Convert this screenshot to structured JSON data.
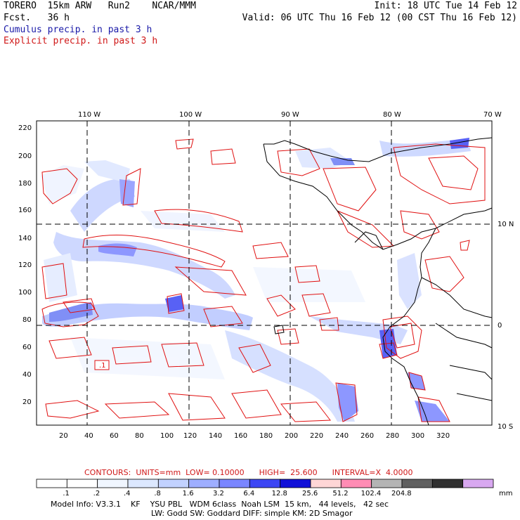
{
  "header": {
    "title": "TORERO  15km ARW   Run2    NCAR/MMM",
    "fcst": "Fcst.   36 h",
    "init": "Init: 18 UTC Tue 14 Feb 12",
    "valid": "Valid: 06 UTC Thu 16 Feb 12 (00 CST Thu 16 Feb 12)",
    "cumulus": "Cumulus precip. in past 3 h",
    "explicit": "Explicit precip. in past 3 h"
  },
  "map": {
    "lon_labels": [
      "110 W",
      "100 W",
      "90 W",
      "80 W",
      "70 W"
    ],
    "lat_labels": [
      "10 N",
      "0",
      "10 S"
    ],
    "y_ticks": [
      "220",
      "200",
      "180",
      "160",
      "140",
      "120",
      "100",
      "80",
      "60",
      "40",
      "20"
    ],
    "x_ticks": [
      "20",
      "40",
      "60",
      "80",
      "100",
      "120",
      "140",
      "160",
      "180",
      "200",
      "220",
      "240",
      "260",
      "280",
      "300",
      "320"
    ],
    "colors": {
      "cumulus": "#4a5ff0",
      "explicit": "#e01010",
      "coast": "#000000"
    }
  },
  "contours": {
    "label": "CONTOURS:  UNITS=mm  LOW= 0.10000      HIGH=  25.600      INTERVAL=X  4.0000",
    "box_label": ".1"
  },
  "legend": {
    "values": [
      ".1",
      ".2",
      ".4",
      ".8",
      "1.6",
      "3.2",
      "6.4",
      "12.8",
      "25.6",
      "51.2",
      "102.4",
      "204.8"
    ],
    "unit": "mm",
    "colors": [
      "#ffffff",
      "#ffffff",
      "#f0f6ff",
      "#dce8ff",
      "#c2d2ff",
      "#9eaeff",
      "#7a86ff",
      "#3c46f4",
      "#1010d8",
      "#ffd6d6",
      "#ff8cb4",
      "#b4b4b4",
      "#606060",
      "#303030",
      "#d8a8f0"
    ]
  },
  "footer": {
    "line1": "Model Info: V3.3.1    KF    YSU PBL   WDM 6class  Noah LSM  15 km,   44 levels,   42 sec",
    "line2": "LW: Godd SW: Goddard DIFF: simple KM: 2D Smagor"
  }
}
